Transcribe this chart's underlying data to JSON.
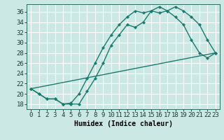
{
  "xlabel": "Humidex (Indice chaleur)",
  "bg_color": "#cce8e4",
  "grid_color": "#ffffff",
  "line_color": "#1a7a6e",
  "xlim": [
    -0.5,
    23.5
  ],
  "ylim": [
    17,
    37.5
  ],
  "xticks": [
    0,
    1,
    2,
    3,
    4,
    5,
    6,
    7,
    8,
    9,
    10,
    11,
    12,
    13,
    14,
    15,
    16,
    17,
    18,
    19,
    20,
    21,
    22,
    23
  ],
  "yticks": [
    18,
    20,
    22,
    24,
    26,
    28,
    30,
    32,
    34,
    36
  ],
  "curve1_x": [
    0,
    1,
    2,
    3,
    4,
    5,
    6,
    7,
    8,
    9,
    10,
    11,
    12,
    13,
    14,
    15,
    16,
    17,
    18,
    19,
    20,
    21,
    22,
    23
  ],
  "curve1_y": [
    21,
    20,
    19,
    19,
    18,
    18,
    18,
    20.5,
    23,
    26,
    29.5,
    31.5,
    33.5,
    33,
    34,
    36.2,
    35.8,
    36.2,
    37,
    36.2,
    35,
    33.5,
    30.5,
    28
  ],
  "curve2_x": [
    0,
    1,
    2,
    3,
    4,
    5,
    6,
    7,
    8,
    9,
    10,
    11,
    12,
    13,
    14,
    15,
    16,
    17,
    18,
    19,
    20,
    21,
    22,
    23
  ],
  "curve2_y": [
    21,
    20,
    19,
    19,
    18,
    18.2,
    20,
    23,
    26,
    29,
    31.5,
    33.5,
    35,
    36.2,
    35.8,
    36.2,
    37,
    36.2,
    35,
    33.5,
    30.5,
    28,
    27,
    28
  ],
  "line3_x": [
    0,
    23
  ],
  "line3_y": [
    21,
    28
  ],
  "linewidth": 1.0,
  "marker": "D",
  "marker_size": 2.2,
  "font_size": 6.5,
  "xlabel_fontsize": 7
}
